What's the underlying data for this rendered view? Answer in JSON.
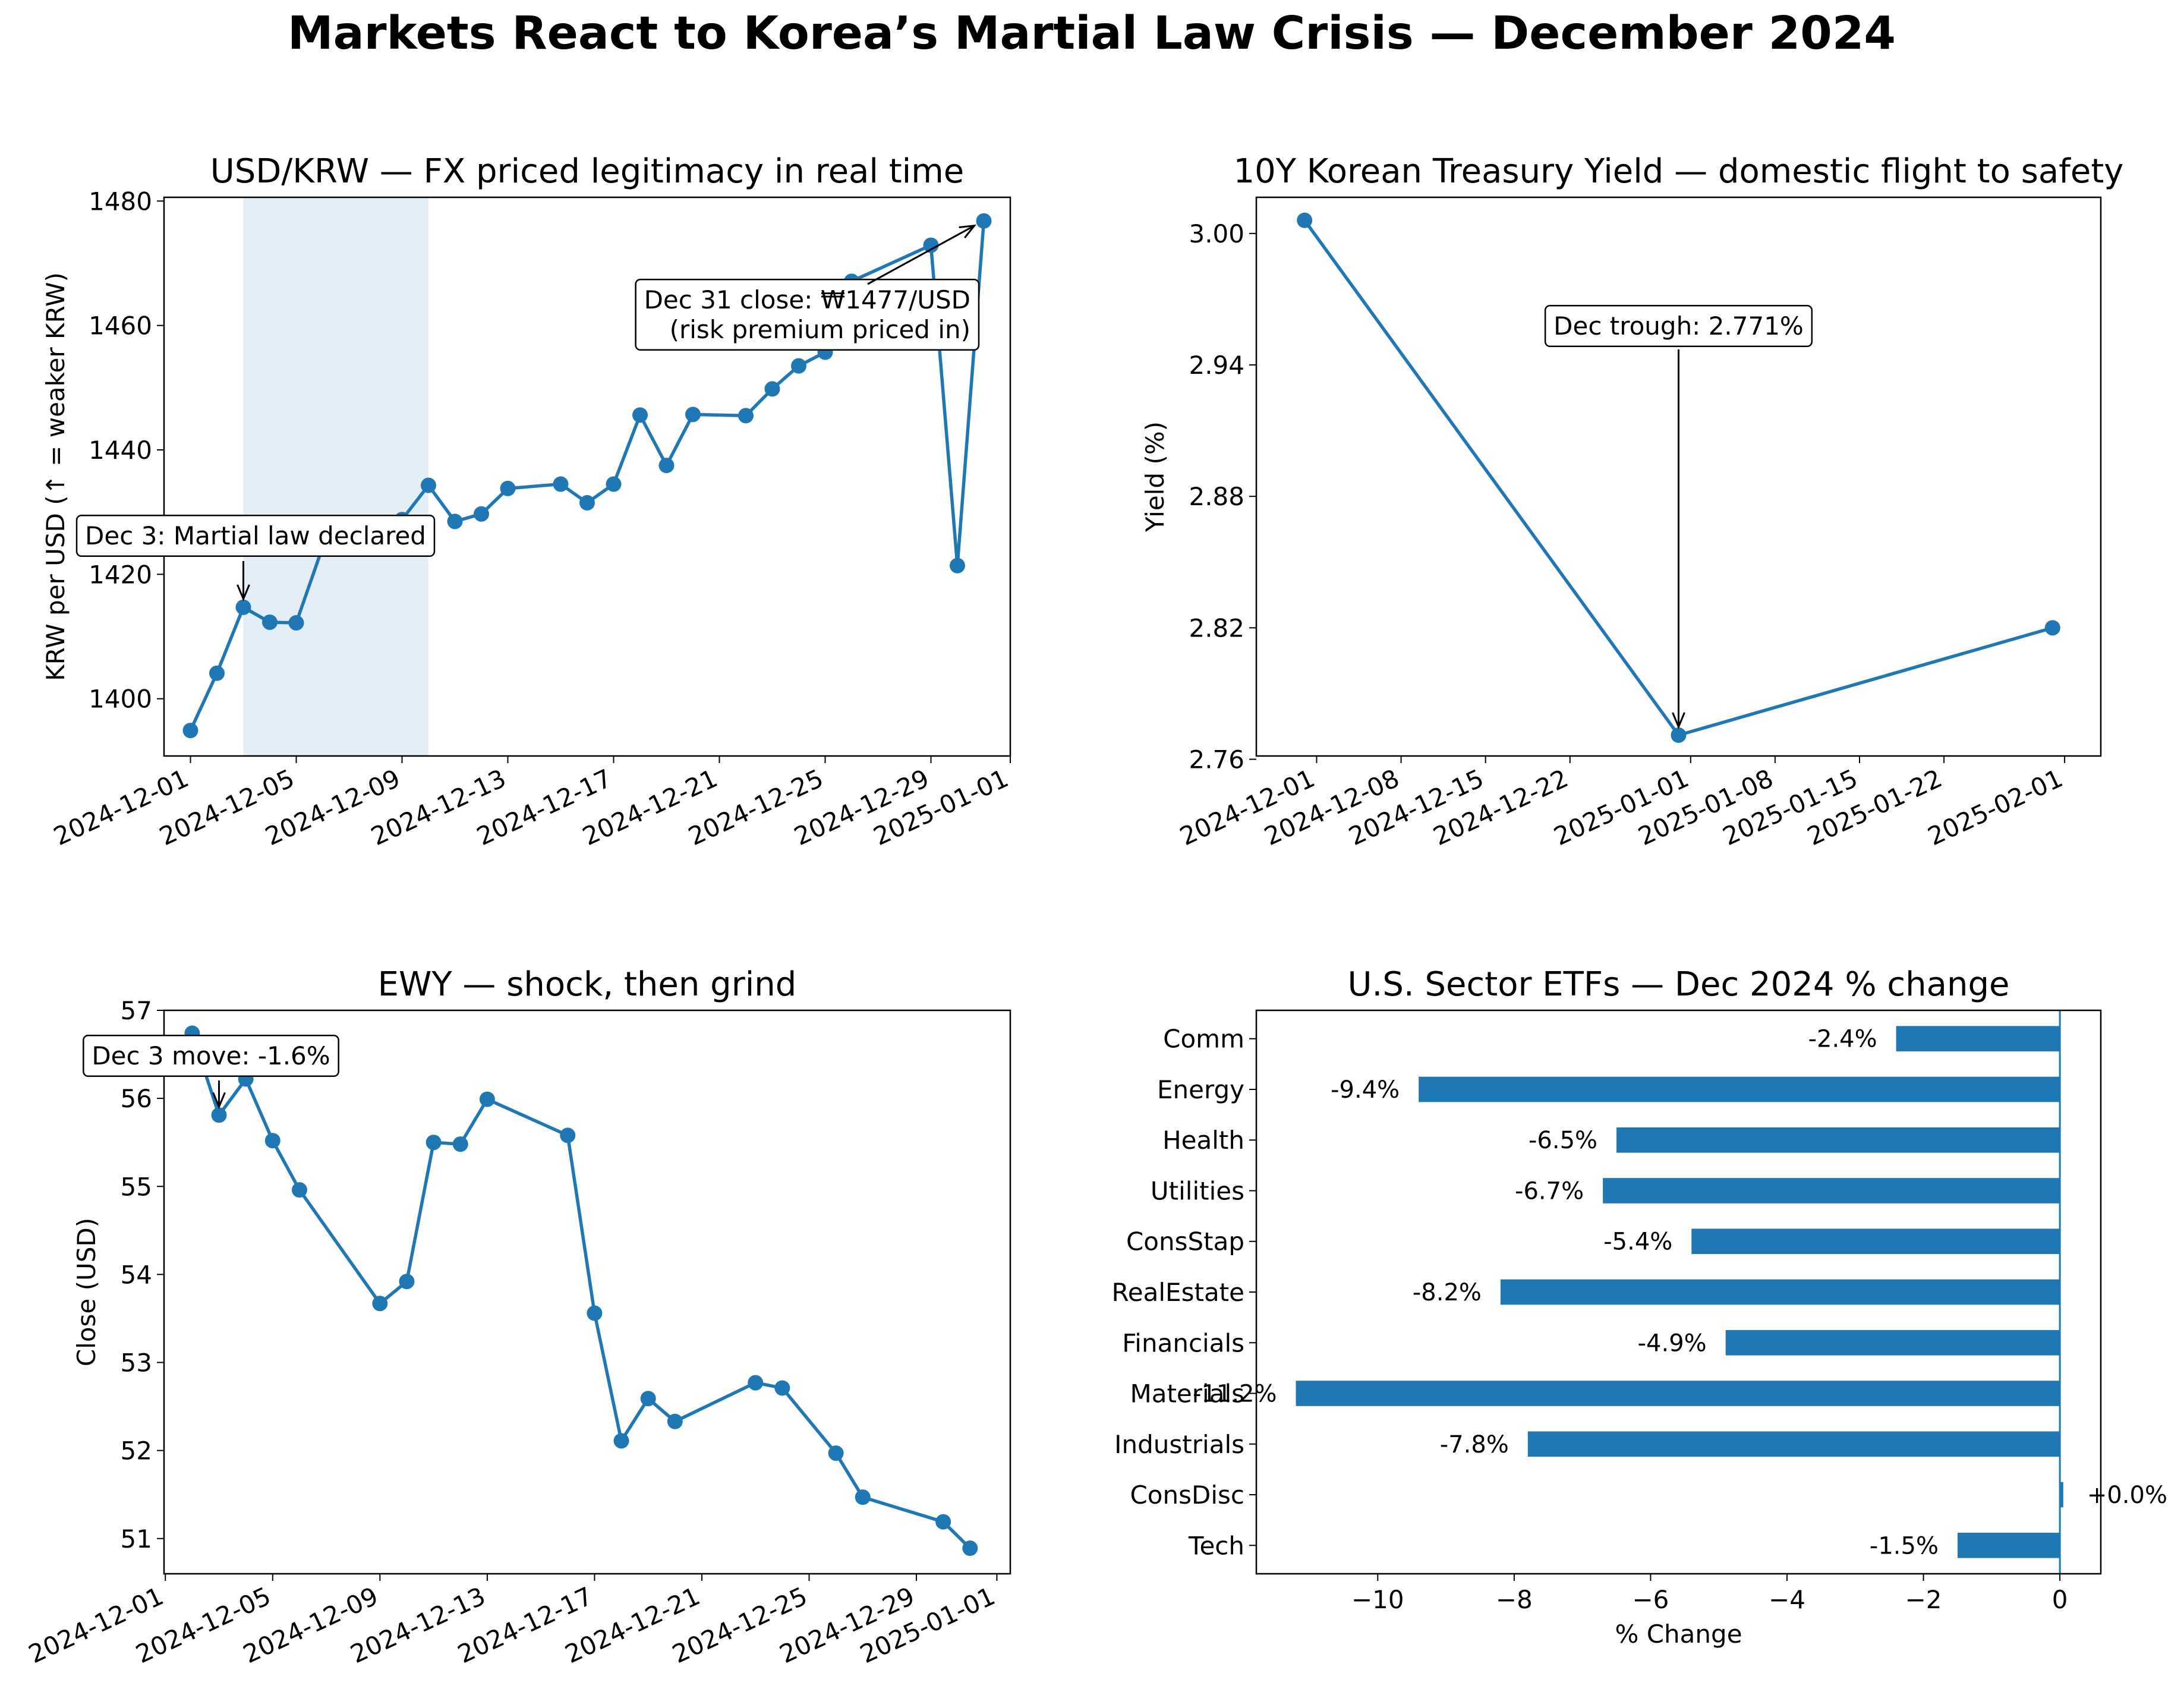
{
  "figure": {
    "title": "Markets React to Korea’s Martial Law Crisis — December 2024"
  },
  "colors": {
    "line": "#1f77b4",
    "shade": "#1f77b4",
    "bar": "#1f77b4"
  },
  "chart_data": [
    {
      "id": "fx",
      "type": "line",
      "title": "USD/KRW — FX priced legitimacy in real time",
      "xlabel": "",
      "ylabel": "KRW per USD (↑ = weaker KRW)",
      "x": [
        "2024-12-01",
        "2024-12-02",
        "2024-12-03",
        "2024-12-04",
        "2024-12-05",
        "2024-12-06",
        "2024-12-09",
        "2024-12-10",
        "2024-12-11",
        "2024-12-12",
        "2024-12-13",
        "2024-12-15",
        "2024-12-16",
        "2024-12-17",
        "2024-12-18",
        "2024-12-19",
        "2024-12-20",
        "2024-12-22",
        "2024-12-23",
        "2024-12-24",
        "2024-12-25",
        "2024-12-26",
        "2024-12-29",
        "2024-12-30",
        "2024-12-31"
      ],
      "y": [
        1394.9,
        1404.1,
        1414.7,
        1412.3,
        1412.2,
        1424.4,
        1428.8,
        1434.3,
        1428.5,
        1429.7,
        1433.8,
        1434.5,
        1431.5,
        1434.5,
        1445.6,
        1437.5,
        1445.7,
        1445.5,
        1449.8,
        1453.5,
        1455.7,
        1467.1,
        1472.9,
        1421.4,
        1476.8
      ],
      "xlim": [
        "2024-11-30",
        "2025-01-01"
      ],
      "ylim": [
        1390.8,
        1480.6
      ],
      "xticks": [
        "2024-12-01",
        "2024-12-05",
        "2024-12-09",
        "2024-12-13",
        "2024-12-17",
        "2024-12-21",
        "2024-12-25",
        "2024-12-29",
        "2025-01-01"
      ],
      "yticks": [
        1400,
        1420,
        1440,
        1460,
        1480
      ],
      "shaded_span": [
        "2024-12-03",
        "2024-12-10"
      ],
      "annotations": [
        {
          "text": "Dec 3: Martial law declared",
          "x": "2024-12-03",
          "y": 1414.7
        },
        {
          "text": "Dec 31 close: ₩1477/USD\n(risk premium priced in)",
          "x": "2024-12-31",
          "y": 1476.8
        }
      ]
    },
    {
      "id": "yield",
      "type": "line",
      "title": "10Y Korean Treasury Yield — domestic flight to safety",
      "xlabel": "",
      "ylabel": "Yield (%)",
      "x": [
        "2024-11-30",
        "2024-12-31",
        "2025-01-31"
      ],
      "y": [
        3.006,
        2.771,
        2.82
      ],
      "xlim": [
        "2024-11-26",
        "2025-02-04"
      ],
      "ylim": [
        2.7615,
        3.0165
      ],
      "xticks": [
        "2024-12-01",
        "2024-12-08",
        "2024-12-15",
        "2024-12-22",
        "2025-01-01",
        "2025-01-08",
        "2025-01-15",
        "2025-01-22",
        "2025-02-01"
      ],
      "yticks": [
        2.76,
        2.82,
        2.88,
        2.94,
        3.0
      ],
      "annotations": [
        {
          "text": "Dec trough: 2.771%",
          "x": "2024-12-31",
          "y": 2.771
        }
      ]
    },
    {
      "id": "ewy",
      "type": "line",
      "title": "EWY — shock, then grind",
      "xlabel": "",
      "ylabel": "Close (USD)",
      "x": [
        "2024-12-02",
        "2024-12-03",
        "2024-12-04",
        "2024-12-05",
        "2024-12-06",
        "2024-12-09",
        "2024-12-10",
        "2024-12-11",
        "2024-12-12",
        "2024-12-13",
        "2024-12-16",
        "2024-12-17",
        "2024-12-18",
        "2024-12-19",
        "2024-12-20",
        "2024-12-23",
        "2024-12-24",
        "2024-12-26",
        "2024-12-27",
        "2024-12-30",
        "2024-12-31"
      ],
      "y": [
        56.74,
        55.81,
        56.22,
        55.52,
        54.96,
        53.67,
        53.92,
        55.5,
        55.48,
        55.99,
        55.58,
        53.56,
        52.11,
        52.59,
        52.33,
        52.77,
        52.71,
        51.97,
        51.47,
        51.19,
        50.89
      ],
      "xlim": [
        "2024-11-30.95",
        "2025-01-01.5"
      ],
      "ylim": [
        50.6,
        57.0
      ],
      "xticks": [
        "2024-12-01",
        "2024-12-05",
        "2024-12-09",
        "2024-12-13",
        "2024-12-17",
        "2024-12-21",
        "2024-12-25",
        "2024-12-29",
        "2025-01-01"
      ],
      "yticks": [
        51,
        52,
        53,
        54,
        55,
        56,
        57
      ],
      "annotations": [
        {
          "text": "Dec 3 move: -1.6%",
          "x": "2024-12-03",
          "y": 55.81
        }
      ]
    },
    {
      "id": "sectors",
      "type": "bar",
      "orientation": "horizontal",
      "title": "U.S. Sector ETFs — Dec 2024 % change",
      "xlabel": "% Change",
      "ylabel": "",
      "categories": [
        "Comm",
        "Energy",
        "Health",
        "Utilities",
        "ConsStap",
        "RealEstate",
        "Financials",
        "Materials",
        "Industrials",
        "ConsDisc",
        "Tech"
      ],
      "values": [
        -2.4,
        -9.4,
        -6.5,
        -6.7,
        -5.4,
        -8.2,
        -4.9,
        -11.2,
        -7.8,
        0.05,
        -1.5
      ],
      "value_labels": [
        "-2.4%",
        "-9.4%",
        "-6.5%",
        "-6.7%",
        "-5.4%",
        "-8.2%",
        "-4.9%",
        "-11.2%",
        "-7.8%",
        "+0.0%",
        "-1.5%"
      ],
      "xlim": [
        -11.78,
        0.6
      ],
      "xticks": [
        -10,
        -8,
        -6,
        -4,
        -2,
        0
      ],
      "xtick_labels": [
        "−10",
        "−8",
        "−6",
        "−4",
        "−2",
        "0"
      ]
    }
  ]
}
